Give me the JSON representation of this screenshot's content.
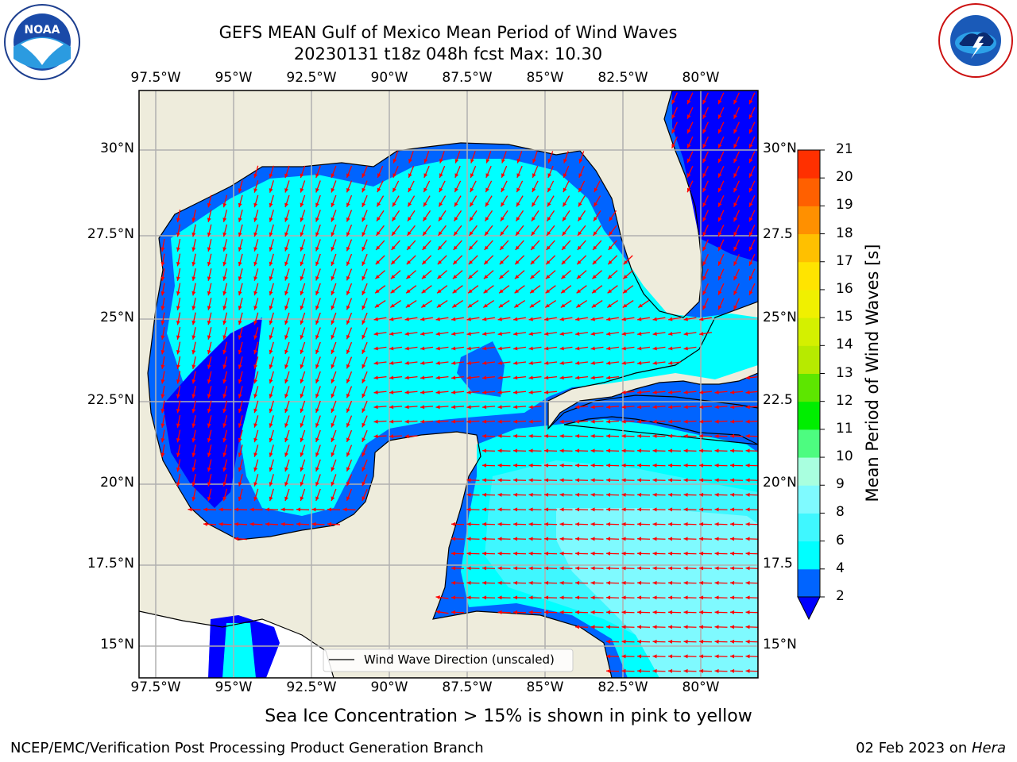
{
  "title": {
    "line1": "GEFS MEAN Gulf of Mexico Mean Period of Wind Waves",
    "line2": "20230131 t18z 048h fcst   Max: 10.30"
  },
  "logos": {
    "left": {
      "name": "noaa-logo",
      "text": "NOAA",
      "ring_text": "NATIONAL OCEANIC AND ATMOSPHERIC ADMINISTRATION · U.S. DEPARTMENT OF COMMERCE"
    },
    "right": {
      "name": "nws-logo",
      "ring_text": "NATIONAL WEATHER SERVICE"
    }
  },
  "map": {
    "lon_labels": [
      "97.5°W",
      "95°W",
      "92.5°W",
      "90°W",
      "87.5°W",
      "85°W",
      "82.5°W",
      "80°W"
    ],
    "lat_labels_left": [
      "30°N",
      "27.5°N",
      "25°N",
      "22.5°N",
      "20°N",
      "17.5°N",
      "15°N"
    ],
    "lat_labels_right": [
      "30°N",
      "27.5",
      "25°N",
      "22.5",
      "20°N",
      "17.5",
      "15°N"
    ],
    "legend_label": "Wind Wave Direction (unscaled)",
    "land_color": "#eeecdc",
    "arrow_color": "#ff0000",
    "grid_color": "#b0b0b0"
  },
  "colorbar": {
    "label": "Mean Period of Wind Waves [s]",
    "ticks": [
      "2",
      "4",
      "6",
      "8",
      "9",
      "10",
      "11",
      "12",
      "13",
      "14",
      "15",
      "16",
      "17",
      "18",
      "19",
      "20",
      "21"
    ],
    "colors": [
      "#0064ff",
      "#00ffff",
      "#3ff7ff",
      "#7ffaff",
      "#a9ffdf",
      "#4dfc80",
      "#00ee00",
      "#5de600",
      "#b7ea00",
      "#d4f000",
      "#f0f000",
      "#ffe400",
      "#ffc000",
      "#ff9000",
      "#ff6000",
      "#ff3000"
    ],
    "extend_color": "#0000ff"
  },
  "subtitle": "Sea Ice Concentration > 15% is shown in pink to yellow",
  "footer": {
    "left": "NCEP/EMC/Verification Post Processing Product Generation Branch",
    "right_date": "02 Feb 2023 on ",
    "right_host": "Hera"
  }
}
